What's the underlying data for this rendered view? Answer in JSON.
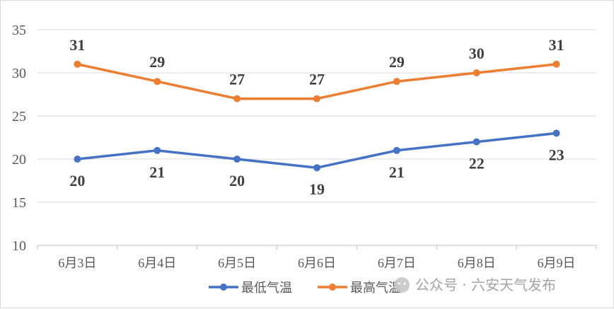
{
  "chart_data": {
    "type": "line",
    "categories": [
      "6月3日",
      "6月4日",
      "6月5日",
      "6月6日",
      "6月7日",
      "6月8日",
      "6月9日"
    ],
    "series": [
      {
        "name": "最低气温",
        "values": [
          20,
          21,
          20,
          19,
          21,
          22,
          23
        ],
        "color": "#4472C4",
        "label_position": "below"
      },
      {
        "name": "最高气温",
        "values": [
          31,
          29,
          27,
          27,
          29,
          30,
          31
        ],
        "color": "#ED7D31",
        "label_position": "above"
      }
    ],
    "ylim": [
      10,
      35
    ],
    "yticks": [
      "10",
      "15",
      "20",
      "25",
      "30",
      "35"
    ],
    "grid": true,
    "legend": "bottom-center",
    "watermark": "公众号 · 六安天气发布"
  }
}
